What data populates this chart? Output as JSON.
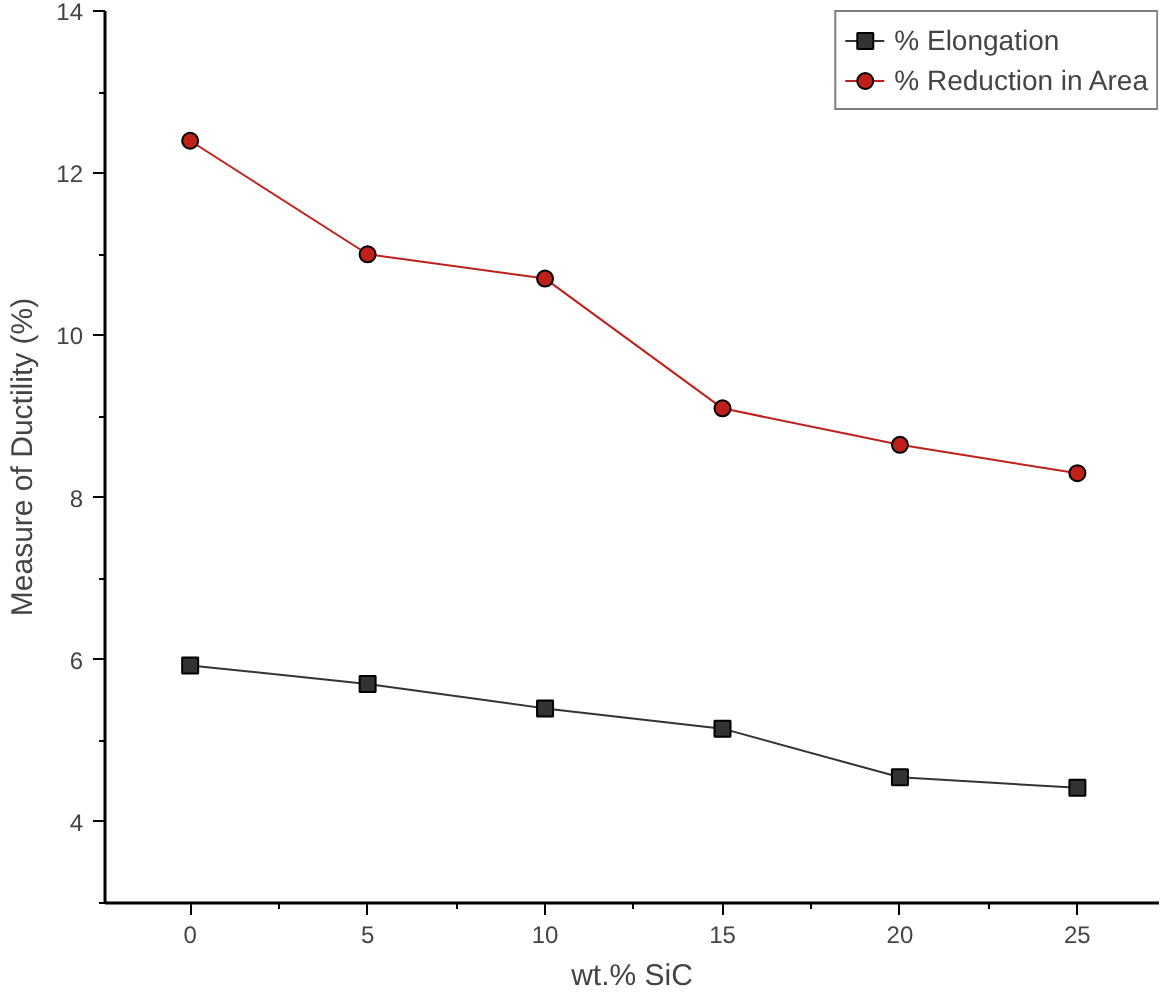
{
  "chart_data": {
    "type": "line",
    "xlabel": "wt.% SiC",
    "ylabel": "Measure of Ductility (%)",
    "x": [
      0,
      5,
      10,
      15,
      20,
      25
    ],
    "series": [
      {
        "name": "% Elongation",
        "color": "#333333",
        "marker": "square",
        "values": [
          5.93,
          5.7,
          5.4,
          5.15,
          4.55,
          4.42
        ]
      },
      {
        "name": "% Reduction in Area",
        "color": "#c0201a",
        "marker": "circle",
        "values": [
          12.4,
          11.0,
          10.7,
          9.1,
          8.65,
          8.3
        ]
      }
    ],
    "xlim": [
      -2.4,
      27.3
    ],
    "ylim": [
      3,
      14
    ],
    "xticks": [
      0,
      5,
      10,
      15,
      20,
      25
    ],
    "yticks": [
      4,
      6,
      8,
      10,
      12,
      14
    ],
    "grid": false,
    "legend": "top right",
    "line_style": "solid"
  }
}
